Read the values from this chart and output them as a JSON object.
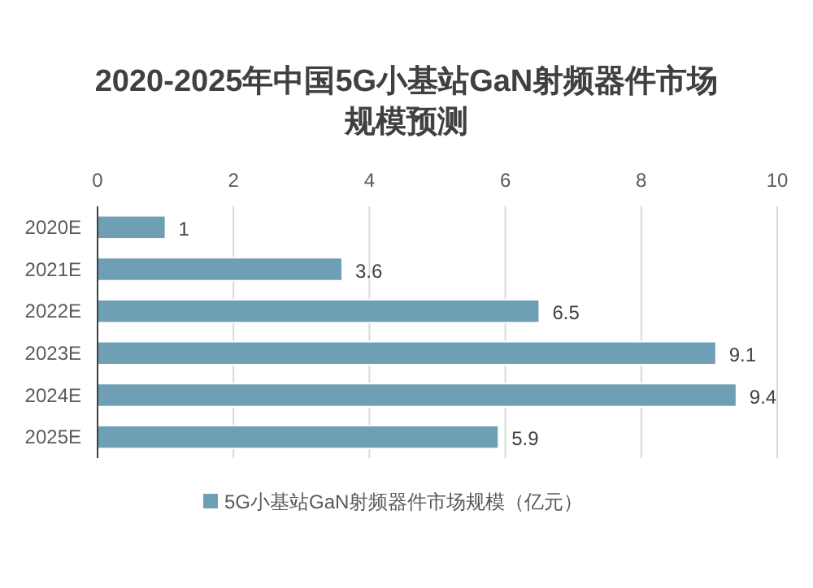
{
  "chart_data": {
    "type": "bar",
    "orientation": "horizontal",
    "title": "2020-2025年中国5G小基站GaN射频器件市场规模预测",
    "categories": [
      "2020E",
      "2021E",
      "2022E",
      "2023E",
      "2024E",
      "2025E"
    ],
    "series": [
      {
        "name": "5G小基站GaN射频器件市场规模（亿元）",
        "color": "#6f9fb4",
        "values": [
          1,
          3.6,
          6.5,
          9.1,
          9.4,
          5.9
        ]
      }
    ],
    "xlim": [
      0,
      10
    ],
    "xticks": [
      0,
      2,
      4,
      6,
      8,
      10
    ],
    "grid": "x",
    "legend": "bottom",
    "data_labels": true
  }
}
